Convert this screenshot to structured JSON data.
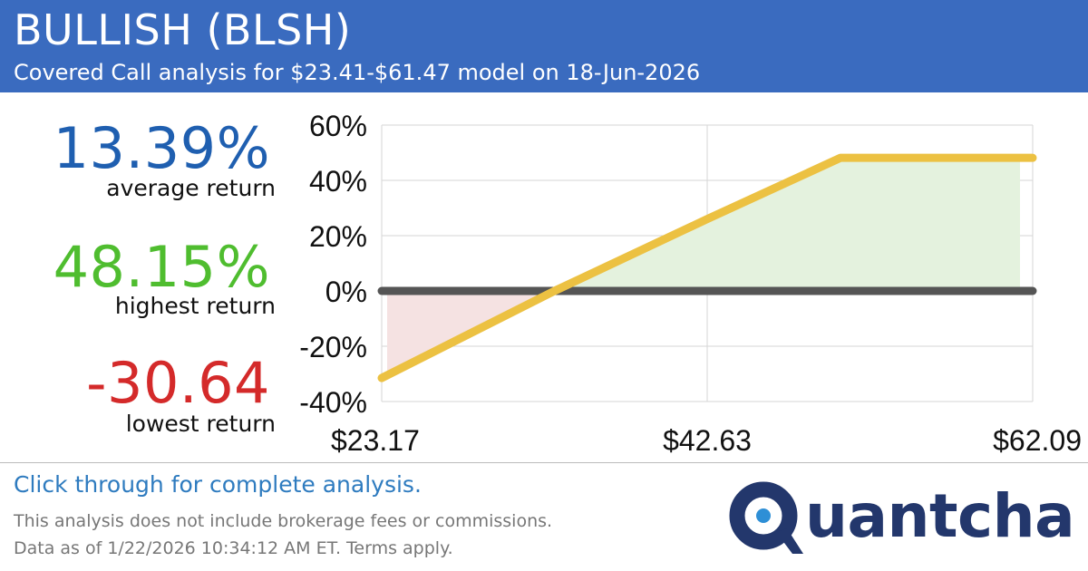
{
  "header": {
    "title": "BULLISH (BLSH)",
    "subtitle": "Covered Call analysis for $23.41-$61.47 model on 18-Jun-2026"
  },
  "stats": {
    "average": {
      "value": "13.39%",
      "label": "average return",
      "color": "#1f5fb0"
    },
    "highest": {
      "value": "48.15%",
      "label": "highest return",
      "color": "#4fbd2f"
    },
    "lowest": {
      "value": "-30.64",
      "label": "lowest return",
      "color": "#d42a2a"
    }
  },
  "chart_data": {
    "type": "line",
    "y_ticks": [
      "60%",
      "40%",
      "20%",
      "0%",
      "-20%",
      "-40%"
    ],
    "y_tick_values": [
      60,
      40,
      20,
      0,
      -20,
      -40
    ],
    "x_ticks": [
      "$23.17",
      "$42.63",
      "$62.09"
    ],
    "x_tick_values": [
      23.17,
      42.63,
      62.09
    ],
    "xlim": [
      23.17,
      62.09
    ],
    "ylim": [
      -40,
      60
    ],
    "grid": true,
    "series": [
      {
        "x": [
          23.17,
          33.5,
          42.63,
          50.6,
          62.09
        ],
        "y": [
          -31.5,
          0,
          26,
          48.15,
          48.15
        ],
        "color": "#ecc142"
      }
    ],
    "zero_line_color": "#555555",
    "profit_fill": "#e4f2de",
    "loss_fill": "#f5e2e2"
  },
  "footer": {
    "cta": "Click through for complete analysis.",
    "disclaimer1": "This analysis does not include brokerage fees or commissions.",
    "disclaimer2": "Data as of 1/22/2026 10:34:12 AM ET. Terms apply."
  },
  "logo": {
    "text": "uantcha",
    "icon": "quantcha-q-logo-icon",
    "color": "#23376c"
  }
}
